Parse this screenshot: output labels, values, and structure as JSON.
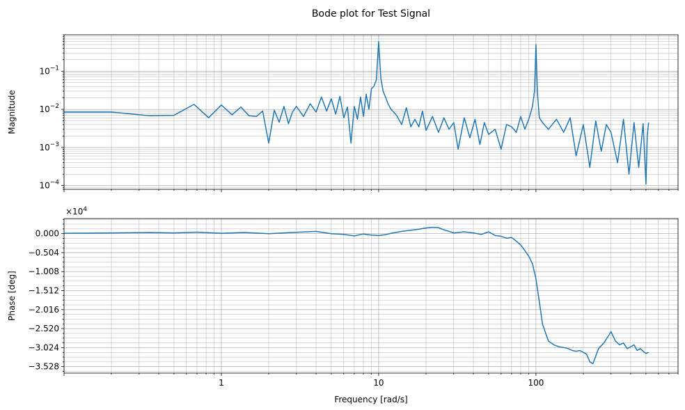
{
  "colors": {
    "line": "#1f77b4",
    "grid": "#b0b0b0",
    "axes": "#000000"
  },
  "figure_title": "Bode plot for Test Signal",
  "chart_data": [
    {
      "type": "line",
      "panel": "magnitude",
      "title": "",
      "xlabel": "",
      "ylabel": "Magnitude",
      "xscale": "log",
      "yscale": "log",
      "xlim": [
        0.1,
        800
      ],
      "ylim": [
        8e-05,
        0.9
      ],
      "grid": true,
      "ytick_labels": [
        {
          "value": 0.0001,
          "base": "10",
          "exp": "−4"
        },
        {
          "value": 0.001,
          "base": "10",
          "exp": "−3"
        },
        {
          "value": 0.01,
          "base": "10",
          "exp": "−2"
        },
        {
          "value": 0.1,
          "base": "10",
          "exp": "−1"
        }
      ],
      "series": [
        {
          "x": [
            0.1,
            0.2,
            0.35,
            0.5,
            0.67,
            0.83,
            1.0,
            1.17,
            1.33,
            1.5,
            1.67,
            1.83,
            2.0,
            2.17,
            2.33,
            2.5,
            2.67,
            2.83,
            3.0,
            3.33,
            3.67,
            4.0,
            4.33,
            4.67,
            5.0,
            5.33,
            5.67,
            6.0,
            6.33,
            6.67,
            7.0,
            7.33,
            7.67,
            8.0,
            8.33,
            8.67,
            9.0,
            9.33,
            9.67,
            10.0,
            10.33,
            10.67,
            11.0,
            11.5,
            12.0,
            13.0,
            14.0,
            15.0,
            16.0,
            17.0,
            18.0,
            19.0,
            20.0,
            22.0,
            24.0,
            26.0,
            28.0,
            30.0,
            32.0,
            35.0,
            38.0,
            41.0,
            44.0,
            47.0,
            50.0,
            55.0,
            60.0,
            65.0,
            70.0,
            75.0,
            80.0,
            85.0,
            90.0,
            95.0,
            98.0,
            100.0,
            102.0,
            105.0,
            110.0,
            120.0,
            135.0,
            150.0,
            165.0,
            180.0,
            200.0,
            220.0,
            240.0,
            260.0,
            280.0,
            300.0,
            330.0,
            360.0,
            390.0,
            420.0,
            450.0,
            480.0,
            500.0,
            510.0,
            520.0
          ],
          "y": [
            0.0085,
            0.0085,
            0.0068,
            0.007,
            0.0135,
            0.006,
            0.013,
            0.0072,
            0.0115,
            0.0068,
            0.0065,
            0.009,
            0.0013,
            0.0095,
            0.0046,
            0.012,
            0.0042,
            0.0085,
            0.012,
            0.0065,
            0.014,
            0.0085,
            0.021,
            0.009,
            0.019,
            0.0075,
            0.022,
            0.006,
            0.0115,
            0.0013,
            0.012,
            0.0055,
            0.021,
            0.0065,
            0.025,
            0.01,
            0.035,
            0.04,
            0.06,
            0.6,
            0.065,
            0.03,
            0.022,
            0.0135,
            0.01,
            0.007,
            0.004,
            0.011,
            0.0035,
            0.0055,
            0.0035,
            0.009,
            0.0028,
            0.0065,
            0.0025,
            0.006,
            0.003,
            0.0045,
            0.0009,
            0.006,
            0.0018,
            0.0055,
            0.0012,
            0.0045,
            0.0022,
            0.003,
            0.0009,
            0.004,
            0.0035,
            0.0025,
            0.0065,
            0.003,
            0.0055,
            0.012,
            0.03,
            0.5,
            0.03,
            0.006,
            0.0045,
            0.003,
            0.0055,
            0.0025,
            0.006,
            0.0006,
            0.004,
            0.0003,
            0.005,
            0.0008,
            0.004,
            0.0025,
            0.0004,
            0.0055,
            0.0002,
            0.0045,
            0.0003,
            0.0042,
            0.00011,
            0.002,
            0.0045
          ]
        }
      ]
    },
    {
      "type": "line",
      "panel": "phase",
      "title": "",
      "xlabel": "Frequency [rad/s]",
      "ylabel": "Phase [deg]",
      "xscale": "log",
      "yscale": "linear",
      "xlim": [
        0.1,
        800
      ],
      "ylim": [
        -3.7,
        0.4
      ],
      "y_multiplier_label": {
        "base": "×10",
        "exp": "4"
      },
      "grid": true,
      "xtick_labels": [
        {
          "value": 1,
          "label": "1"
        },
        {
          "value": 10,
          "label": "10"
        },
        {
          "value": 100,
          "label": "100"
        }
      ],
      "ytick_labels": [
        {
          "value": 0.0,
          "label": "0.000"
        },
        {
          "value": -0.504,
          "label": "−0.504"
        },
        {
          "value": -1.008,
          "label": "−1.008"
        },
        {
          "value": -1.512,
          "label": "−1.512"
        },
        {
          "value": -2.016,
          "label": "−2.016"
        },
        {
          "value": -2.52,
          "label": "−2.520"
        },
        {
          "value": -3.024,
          "label": "−3.024"
        },
        {
          "value": -3.528,
          "label": "−3.528"
        }
      ],
      "series": [
        {
          "x": [
            0.1,
            0.2,
            0.35,
            0.5,
            0.7,
            1.0,
            1.4,
            2.0,
            2.8,
            4.0,
            5.0,
            6.0,
            7.0,
            8.0,
            9.0,
            10.0,
            11.0,
            12.0,
            14.0,
            16.0,
            18.0,
            20.0,
            22.0,
            24.0,
            26.0,
            28.0,
            30.0,
            35.0,
            40.0,
            45.0,
            50.0,
            55.0,
            60.0,
            65.0,
            70.0,
            75.0,
            80.0,
            85.0,
            90.0,
            95.0,
            100.0,
            105.0,
            110.0,
            120.0,
            130.0,
            140.0,
            150.0,
            160.0,
            170.0,
            180.0,
            190.0,
            200.0,
            210.0,
            220.0,
            230.0,
            240.0,
            250.0,
            270.0,
            290.0,
            300.0,
            320.0,
            340.0,
            360.0,
            380.0,
            400.0,
            420.0,
            440.0,
            460.0,
            480.0,
            500.0,
            520.0
          ],
          "y": [
            0.01,
            0.02,
            0.03,
            0.02,
            0.04,
            0.01,
            0.03,
            0.0,
            0.03,
            0.06,
            0.0,
            -0.02,
            -0.06,
            -0.01,
            -0.04,
            -0.05,
            -0.03,
            0.01,
            0.06,
            0.09,
            0.12,
            0.15,
            0.17,
            0.16,
            0.1,
            0.06,
            0.02,
            0.05,
            0.02,
            -0.02,
            0.05,
            -0.05,
            -0.07,
            -0.12,
            -0.1,
            -0.2,
            -0.3,
            -0.45,
            -0.6,
            -0.8,
            -1.2,
            -1.8,
            -2.4,
            -2.85,
            -2.95,
            -3.0,
            -3.02,
            -3.05,
            -3.1,
            -3.12,
            -3.1,
            -3.15,
            -3.2,
            -3.4,
            -3.45,
            -3.25,
            -3.05,
            -2.9,
            -2.7,
            -2.6,
            -2.85,
            -2.95,
            -2.9,
            -3.05,
            -3.0,
            -2.95,
            -3.1,
            -3.05,
            -3.12,
            -3.18,
            -3.15
          ]
        }
      ]
    }
  ]
}
